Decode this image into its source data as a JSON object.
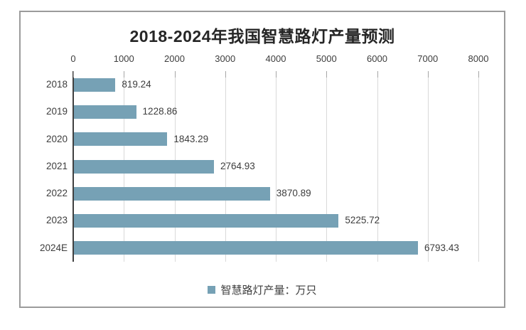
{
  "window": {
    "background_color": "#ffffff",
    "frame_border_color": "#9b9b9b"
  },
  "chart_data": {
    "type": "bar",
    "orientation": "horizontal",
    "title": "2018-2024年我国智慧路灯产量预测",
    "categories": [
      "2018",
      "2019",
      "2020",
      "2021",
      "2022",
      "2023",
      "2024E"
    ],
    "values": [
      819.24,
      1228.86,
      1843.29,
      2764.93,
      3870.89,
      5225.72,
      6793.43
    ],
    "x_ticks": [
      "0",
      "1000",
      "2000",
      "3000",
      "4000",
      "5000",
      "6000",
      "7000",
      "8000"
    ],
    "xlim": [
      0,
      8000
    ],
    "xlabel": "",
    "ylabel": "",
    "grid": true,
    "gridline_color": "#d9d9d9",
    "axis_line_color": "#404040",
    "tick_color": "#a6a6a6",
    "bar_color": "#76a1b5",
    "text_color": "#3d3d3d",
    "title_color": "#262626",
    "legend": {
      "position": "bottom-center",
      "marker": "square-icon",
      "marker_color": "#76a1b5",
      "label": "智慧路灯产量：万只"
    }
  }
}
